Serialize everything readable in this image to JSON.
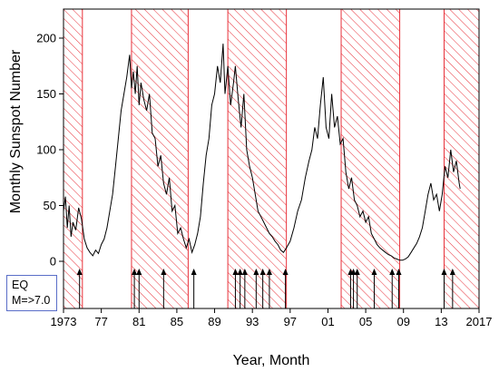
{
  "chart_data": {
    "type": "line",
    "title": "",
    "xlabel": "Year, Month",
    "ylabel": "Monthly Sunspot Number",
    "xlim": [
      1973,
      2017
    ],
    "ylim": [
      0,
      225
    ],
    "grid": false,
    "x_ticks": [
      {
        "value": 1973,
        "label": "1973"
      },
      {
        "value": 1977,
        "label": "77"
      },
      {
        "value": 1981,
        "label": "81"
      },
      {
        "value": 1985,
        "label": "85"
      },
      {
        "value": 1989,
        "label": "89"
      },
      {
        "value": 1993,
        "label": "93"
      },
      {
        "value": 1997,
        "label": "97"
      },
      {
        "value": 2001,
        "label": "01"
      },
      {
        "value": 2005,
        "label": "05"
      },
      {
        "value": 2009,
        "label": "09"
      },
      {
        "value": 2013,
        "label": "13"
      },
      {
        "value": 2017,
        "label": "2017"
      }
    ],
    "y_ticks": [
      0,
      50,
      100,
      150,
      200
    ],
    "series": [
      {
        "color": "#000000",
        "points": [
          [
            1973.0,
            45
          ],
          [
            1973.2,
            58
          ],
          [
            1973.4,
            30
          ],
          [
            1973.6,
            50
          ],
          [
            1973.8,
            22
          ],
          [
            1974.0,
            35
          ],
          [
            1974.3,
            28
          ],
          [
            1974.6,
            48
          ],
          [
            1974.9,
            38
          ],
          [
            1975.2,
            20
          ],
          [
            1975.5,
            12
          ],
          [
            1975.8,
            8
          ],
          [
            1976.1,
            5
          ],
          [
            1976.4,
            10
          ],
          [
            1976.7,
            7
          ],
          [
            1977.0,
            15
          ],
          [
            1977.3,
            20
          ],
          [
            1977.6,
            30
          ],
          [
            1977.9,
            45
          ],
          [
            1978.2,
            60
          ],
          [
            1978.5,
            85
          ],
          [
            1978.8,
            110
          ],
          [
            1979.1,
            135
          ],
          [
            1979.4,
            150
          ],
          [
            1979.7,
            165
          ],
          [
            1980.0,
            185
          ],
          [
            1980.2,
            155
          ],
          [
            1980.4,
            170
          ],
          [
            1980.6,
            150
          ],
          [
            1980.8,
            175
          ],
          [
            1981.0,
            140
          ],
          [
            1981.2,
            160
          ],
          [
            1981.5,
            145
          ],
          [
            1981.8,
            135
          ],
          [
            1982.1,
            150
          ],
          [
            1982.4,
            115
          ],
          [
            1982.7,
            110
          ],
          [
            1983.0,
            85
          ],
          [
            1983.3,
            95
          ],
          [
            1983.6,
            70
          ],
          [
            1983.9,
            60
          ],
          [
            1984.2,
            75
          ],
          [
            1984.5,
            45
          ],
          [
            1984.8,
            50
          ],
          [
            1985.1,
            25
          ],
          [
            1985.4,
            30
          ],
          [
            1985.7,
            20
          ],
          [
            1986.0,
            12
          ],
          [
            1986.3,
            20
          ],
          [
            1986.6,
            8
          ],
          [
            1986.9,
            15
          ],
          [
            1987.2,
            25
          ],
          [
            1987.5,
            40
          ],
          [
            1987.8,
            70
          ],
          [
            1988.1,
            95
          ],
          [
            1988.4,
            110
          ],
          [
            1988.7,
            140
          ],
          [
            1989.0,
            150
          ],
          [
            1989.3,
            175
          ],
          [
            1989.6,
            160
          ],
          [
            1989.9,
            195
          ],
          [
            1990.1,
            150
          ],
          [
            1990.4,
            175
          ],
          [
            1990.7,
            140
          ],
          [
            1991.0,
            160
          ],
          [
            1991.2,
            175
          ],
          [
            1991.5,
            145
          ],
          [
            1991.8,
            120
          ],
          [
            1992.1,
            150
          ],
          [
            1992.4,
            100
          ],
          [
            1992.7,
            85
          ],
          [
            1993.0,
            75
          ],
          [
            1993.3,
            60
          ],
          [
            1993.6,
            45
          ],
          [
            1993.9,
            40
          ],
          [
            1994.2,
            35
          ],
          [
            1994.5,
            30
          ],
          [
            1994.8,
            25
          ],
          [
            1995.1,
            22
          ],
          [
            1995.4,
            18
          ],
          [
            1995.7,
            15
          ],
          [
            1996.0,
            10
          ],
          [
            1996.3,
            8
          ],
          [
            1996.6,
            12
          ],
          [
            1997.0,
            18
          ],
          [
            1997.4,
            30
          ],
          [
            1997.8,
            45
          ],
          [
            1998.2,
            55
          ],
          [
            1998.6,
            75
          ],
          [
            1999.0,
            90
          ],
          [
            1999.3,
            100
          ],
          [
            1999.6,
            120
          ],
          [
            1999.9,
            110
          ],
          [
            2000.2,
            140
          ],
          [
            2000.5,
            165
          ],
          [
            2000.8,
            120
          ],
          [
            2001.1,
            110
          ],
          [
            2001.4,
            150
          ],
          [
            2001.7,
            120
          ],
          [
            2002.0,
            130
          ],
          [
            2002.3,
            105
          ],
          [
            2002.6,
            110
          ],
          [
            2002.9,
            80
          ],
          [
            2003.2,
            65
          ],
          [
            2003.5,
            75
          ],
          [
            2003.8,
            55
          ],
          [
            2004.1,
            50
          ],
          [
            2004.4,
            40
          ],
          [
            2004.7,
            45
          ],
          [
            2005.0,
            35
          ],
          [
            2005.3,
            40
          ],
          [
            2005.6,
            25
          ],
          [
            2005.9,
            20
          ],
          [
            2006.2,
            15
          ],
          [
            2006.5,
            12
          ],
          [
            2006.8,
            10
          ],
          [
            2007.1,
            8
          ],
          [
            2007.4,
            6
          ],
          [
            2007.7,
            5
          ],
          [
            2008.0,
            3
          ],
          [
            2008.3,
            2
          ],
          [
            2008.6,
            1
          ],
          [
            2008.9,
            1
          ],
          [
            2009.2,
            2
          ],
          [
            2009.5,
            4
          ],
          [
            2009.8,
            8
          ],
          [
            2010.1,
            12
          ],
          [
            2010.4,
            16
          ],
          [
            2010.7,
            22
          ],
          [
            2011.0,
            30
          ],
          [
            2011.3,
            45
          ],
          [
            2011.6,
            60
          ],
          [
            2011.9,
            70
          ],
          [
            2012.2,
            55
          ],
          [
            2012.5,
            60
          ],
          [
            2012.8,
            45
          ],
          [
            2013.1,
            60
          ],
          [
            2013.4,
            85
          ],
          [
            2013.7,
            75
          ],
          [
            2014.0,
            100
          ],
          [
            2014.3,
            80
          ],
          [
            2014.6,
            90
          ],
          [
            2014.9,
            70
          ],
          [
            2015.0,
            65
          ]
        ]
      }
    ],
    "shaded_periods": [
      [
        1973.0,
        1975.0
      ],
      [
        1980.2,
        1986.2
      ],
      [
        1990.4,
        1996.6
      ],
      [
        2002.4,
        2008.6
      ],
      [
        2013.3,
        2017.0
      ]
    ],
    "earthquake_markers": [
      1974.7,
      1980.5,
      1981.0,
      1983.6,
      1986.8,
      1991.2,
      1991.7,
      1992.2,
      1993.4,
      1994.1,
      1994.8,
      1996.5,
      2003.4,
      2003.7,
      2004.1,
      2005.9,
      2007.8,
      2008.5,
      2013.3,
      2014.2
    ],
    "legend": {
      "placement": "bottom-left",
      "lines": [
        "EQ",
        "M=>7.0"
      ]
    },
    "colors": {
      "shade": "#e8313a",
      "line": "#000000",
      "legend_border": "#5a6ec8"
    }
  }
}
